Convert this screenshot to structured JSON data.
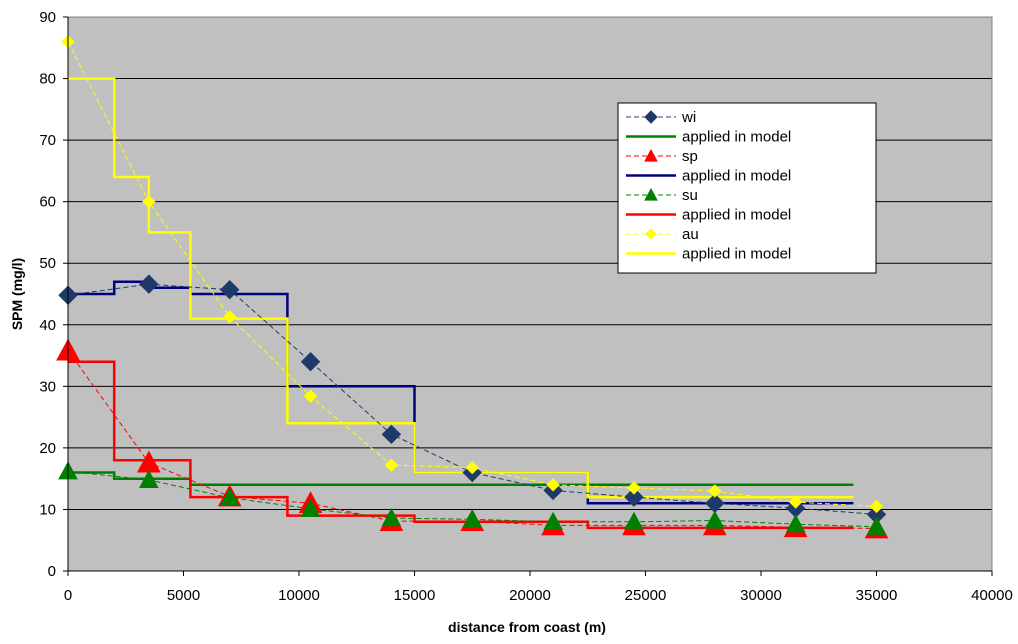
{
  "chart_data": {
    "type": "line",
    "title": "",
    "xlabel": "distance from coast (m)",
    "ylabel": "SPM (mg/l)",
    "xlim": [
      0,
      40000
    ],
    "ylim": [
      0,
      90
    ],
    "xticks": [
      0,
      5000,
      10000,
      15000,
      20000,
      25000,
      30000,
      35000,
      40000
    ],
    "yticks": [
      0,
      10,
      20,
      30,
      40,
      50,
      60,
      70,
      80,
      90
    ],
    "x_tick_labels": [
      "0",
      "5000",
      "10000",
      "15000",
      "20000",
      "25000",
      "30000",
      "35000",
      "40000"
    ],
    "y_tick_labels": [
      "0",
      "10",
      "20",
      "30",
      "40",
      "50",
      "60",
      "70",
      "80",
      "90"
    ],
    "grid": "horizontal",
    "plot_background": "#c0c0c0",
    "legend_position": "top-right",
    "series": [
      {
        "name": "wi",
        "kind": "measured",
        "color": "#1f3a68",
        "marker": "diamond",
        "x": [
          0,
          3500,
          7000,
          10500,
          14000,
          17500,
          21000,
          24500,
          28000,
          31500,
          35000
        ],
        "y": [
          44.8,
          46.6,
          45.7,
          34,
          22.2,
          16,
          13.1,
          12,
          11,
          10.2,
          9.2
        ]
      },
      {
        "name": "applied in model",
        "kind": "step",
        "color": "#008000",
        "x": [
          0,
          2000,
          2000,
          5300,
          5300,
          34000
        ],
        "y": [
          16,
          16,
          15,
          15,
          14,
          14
        ]
      },
      {
        "name": "sp",
        "kind": "measured",
        "color": "#ff0000",
        "marker": "triangle",
        "x": [
          0,
          3500,
          7000,
          10500,
          14000,
          17500,
          21000,
          24500,
          28000,
          31500,
          35000
        ],
        "y": [
          35.8,
          17.6,
          12.1,
          11,
          8.1,
          8.1,
          7.4,
          7.4,
          7.4,
          7.1,
          6.9
        ]
      },
      {
        "name": "applied in model",
        "kind": "step",
        "color": "#000080",
        "x": [
          0,
          2000,
          2000,
          3500,
          3500,
          5300,
          5300,
          9500,
          9500,
          15000,
          15000,
          22500,
          22500,
          34000
        ],
        "y": [
          45,
          45,
          47,
          47,
          46,
          46,
          45,
          45,
          30,
          30,
          16,
          16,
          11,
          11
        ]
      },
      {
        "name": "su",
        "kind": "measured",
        "color": "#008000",
        "marker": "triangle",
        "x": [
          0,
          3500,
          7000,
          10500,
          14000,
          17500,
          21000,
          24500,
          28000,
          31500,
          35000
        ],
        "y": [
          16.2,
          14.8,
          11.9,
          10.1,
          8.6,
          8.4,
          8,
          8,
          8.2,
          7.6,
          7.2
        ]
      },
      {
        "name": "applied in model",
        "kind": "step",
        "color": "#ff0000",
        "x": [
          0,
          2000,
          2000,
          5300,
          5300,
          9500,
          9500,
          15000,
          15000,
          22500,
          22500,
          34000
        ],
        "y": [
          34,
          34,
          18,
          18,
          12,
          12,
          9,
          9,
          8,
          8,
          7,
          7
        ]
      },
      {
        "name": "au",
        "kind": "measured",
        "color": "#ffff00",
        "marker": "diamond",
        "x": [
          0,
          3500,
          7000,
          10500,
          14000,
          17500,
          21000,
          24500,
          28000,
          31500,
          35000
        ],
        "y": [
          86,
          60,
          41.3,
          28.4,
          17.2,
          16.8,
          14,
          13.5,
          13,
          11.2,
          10.5
        ]
      },
      {
        "name": "applied in model",
        "kind": "step",
        "color": "#ffff00",
        "x": [
          0,
          2000,
          2000,
          3500,
          3500,
          5300,
          5300,
          9500,
          9500,
          15000,
          15000,
          22500,
          22500,
          34000
        ],
        "y": [
          80,
          80,
          64,
          64,
          55,
          55,
          41,
          41,
          24,
          24,
          16,
          16,
          12,
          12
        ]
      }
    ]
  }
}
